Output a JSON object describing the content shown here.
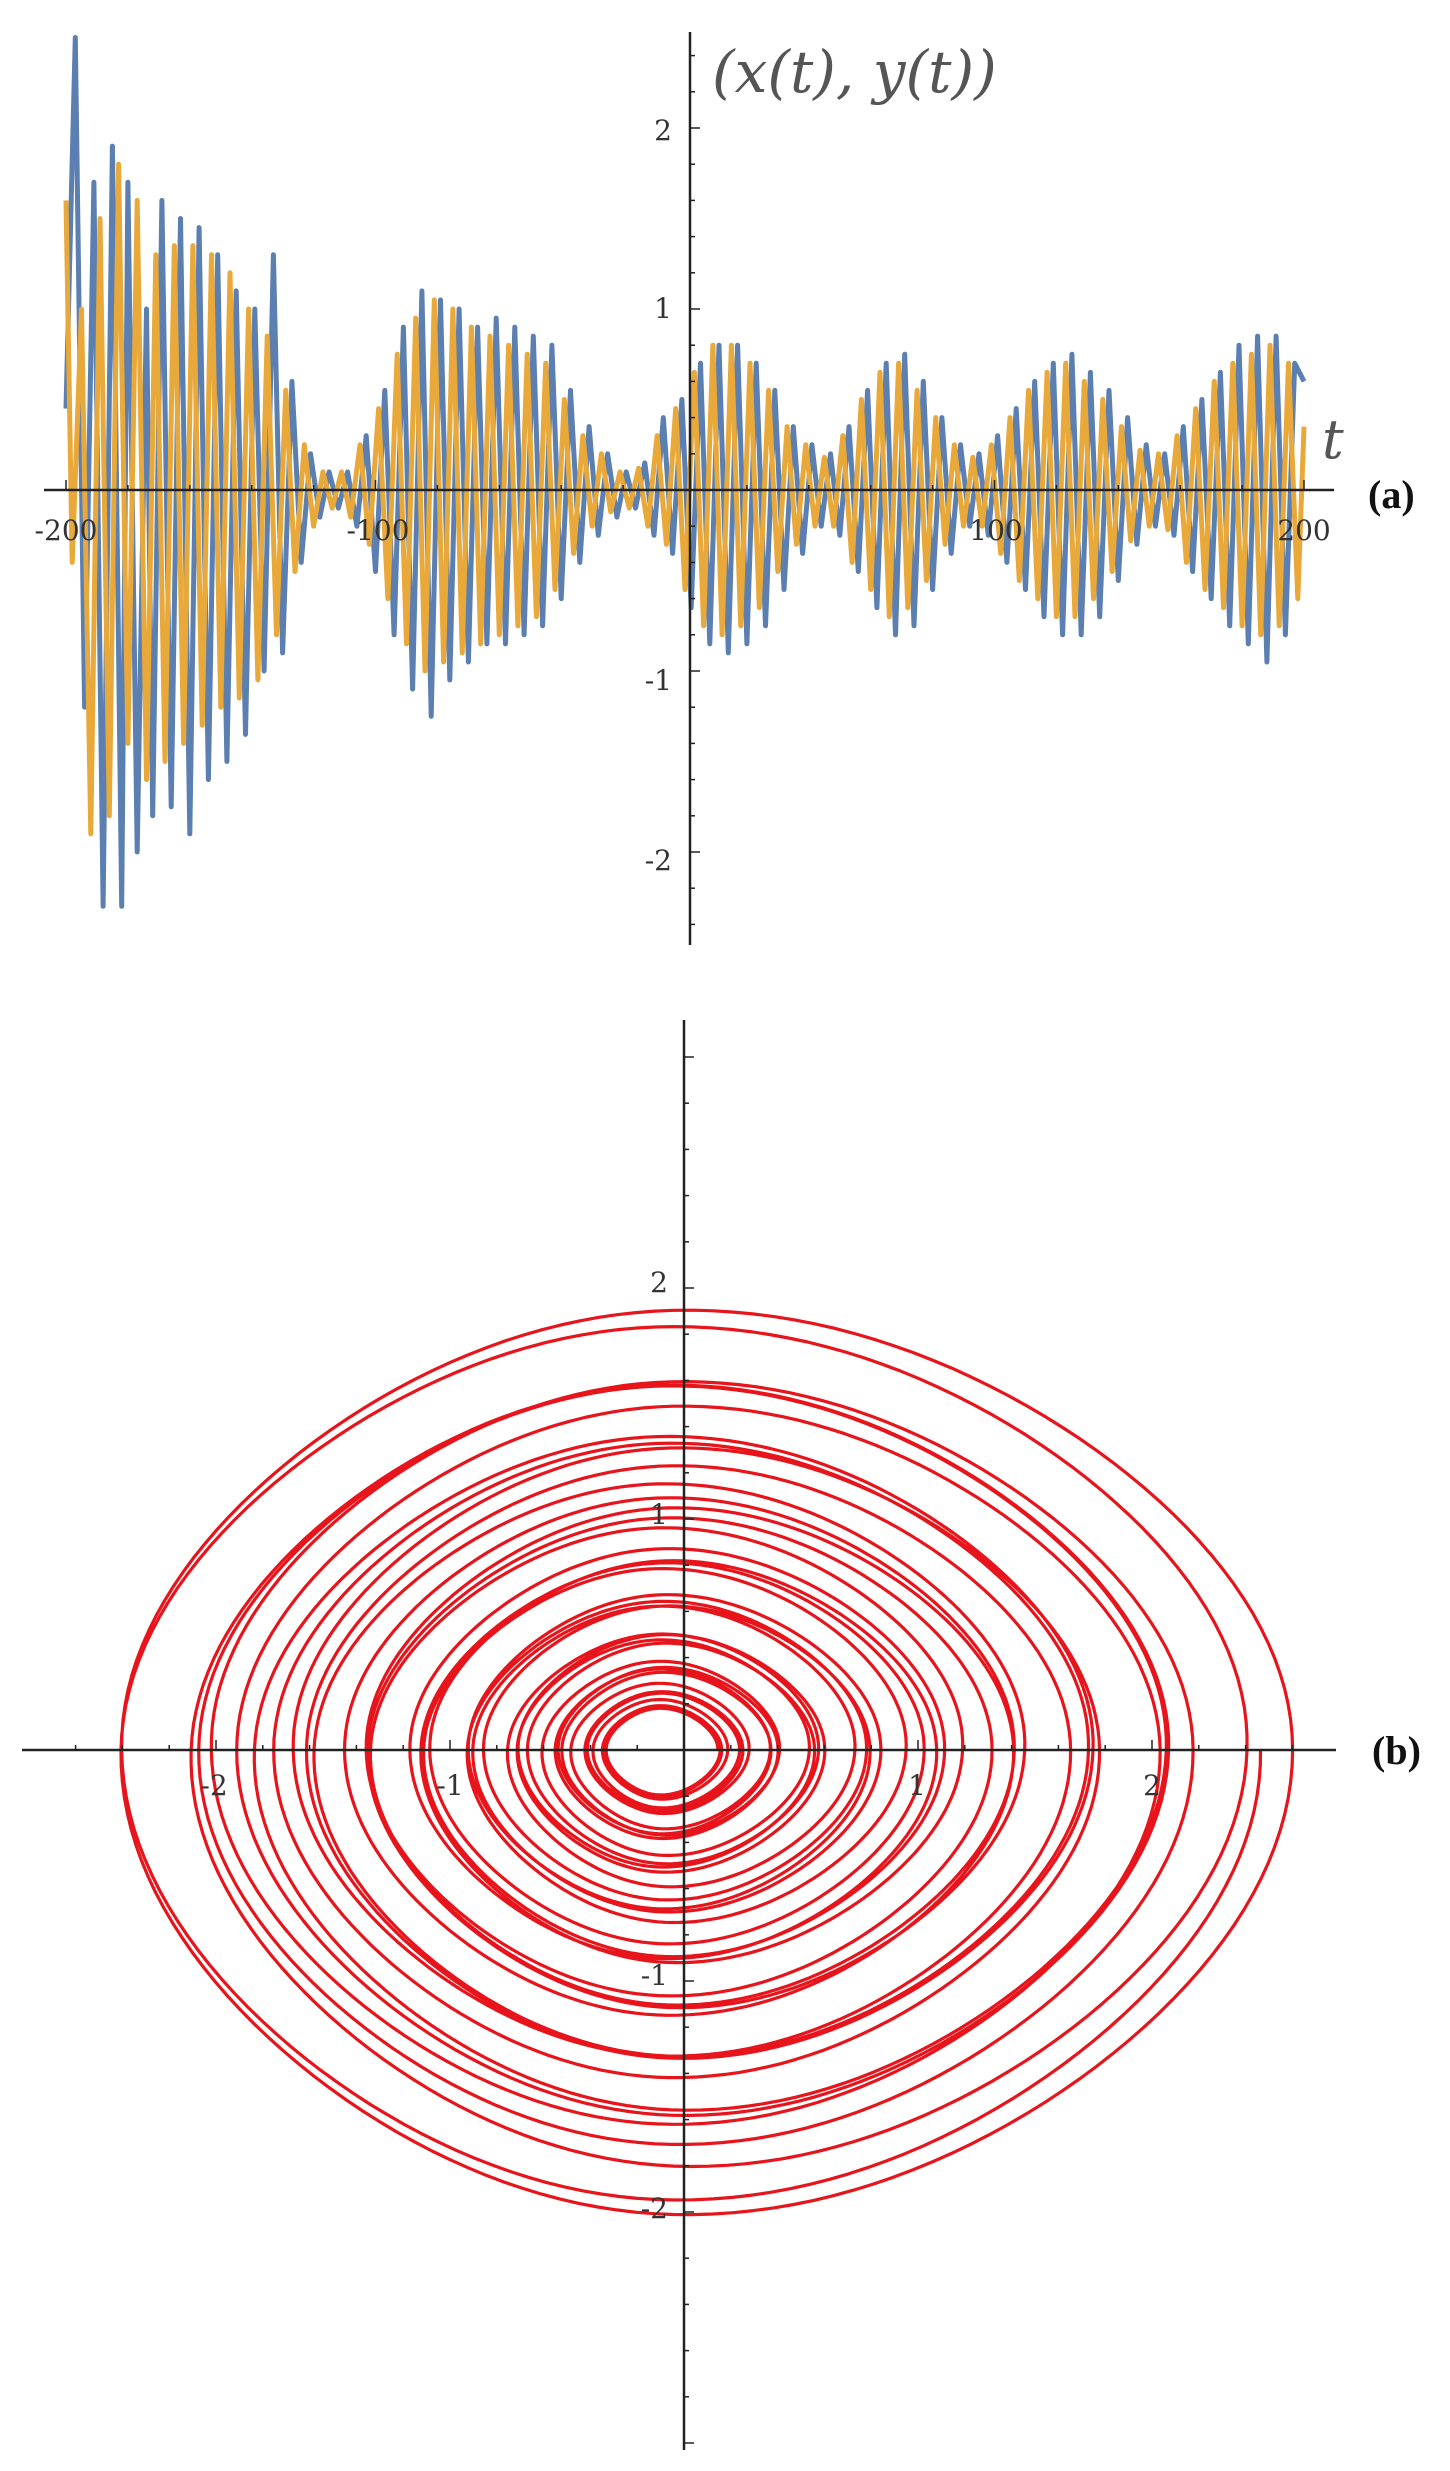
{
  "chart_data": [
    {
      "id": "a",
      "type": "line",
      "panel_label": "(a)",
      "title": "(x(t), y(t))",
      "xlabel": "t",
      "ylabel": "",
      "xlim": [
        -200,
        200
      ],
      "ylim": [
        -2.5,
        2.5
      ],
      "x_ticks": [
        -200,
        -100,
        100,
        200
      ],
      "y_ticks": [
        -2,
        -1,
        1,
        2
      ],
      "grid": false,
      "series": [
        {
          "color": "#5b7fb0",
          "points": [
            [
              -200,
              0.45
            ],
            [
              -197,
              2.5
            ],
            [
              -194,
              -1.2
            ],
            [
              -191,
              1.7
            ],
            [
              -188,
              -2.3
            ],
            [
              -185,
              1.9
            ],
            [
              -182,
              -2.3
            ],
            [
              -180,
              1.7
            ],
            [
              -177,
              -2.0
            ],
            [
              -174,
              1.0
            ],
            [
              -172,
              -1.8
            ],
            [
              -169,
              1.6
            ],
            [
              -166,
              -1.75
            ],
            [
              -163,
              1.5
            ],
            [
              -160,
              -1.9
            ],
            [
              -157,
              1.45
            ],
            [
              -154,
              -1.6
            ],
            [
              -151,
              1.3
            ],
            [
              -148,
              -1.5
            ],
            [
              -145,
              1.1
            ],
            [
              -142,
              -1.35
            ],
            [
              -139,
              1.0
            ],
            [
              -136,
              -1.0
            ],
            [
              -133,
              1.3
            ],
            [
              -130,
              -0.9
            ],
            [
              -127,
              0.6
            ],
            [
              -124,
              -0.4
            ],
            [
              -121,
              0.2
            ],
            [
              -118,
              -0.15
            ],
            [
              -115,
              0.1
            ],
            [
              -112,
              -0.1
            ],
            [
              -109,
              0.1
            ],
            [
              -106,
              -0.2
            ],
            [
              -103,
              0.3
            ],
            [
              -100,
              -0.45
            ],
            [
              -97,
              0.55
            ],
            [
              -94,
              -0.8
            ],
            [
              -91,
              0.9
            ],
            [
              -88,
              -1.1
            ],
            [
              -85,
              1.1
            ],
            [
              -82,
              -1.25
            ],
            [
              -79,
              1.05
            ],
            [
              -76,
              -1.05
            ],
            [
              -73,
              1.0
            ],
            [
              -70,
              -0.95
            ],
            [
              -67,
              0.9
            ],
            [
              -64,
              -0.85
            ],
            [
              -61,
              0.95
            ],
            [
              -58,
              -0.85
            ],
            [
              -55,
              0.9
            ],
            [
              -52,
              -0.8
            ],
            [
              -49,
              0.85
            ],
            [
              -46,
              -0.75
            ],
            [
              -43,
              0.8
            ],
            [
              -40,
              -0.6
            ],
            [
              -37,
              0.55
            ],
            [
              -34,
              -0.4
            ],
            [
              -31,
              0.35
            ],
            [
              -28,
              -0.25
            ],
            [
              -25,
              0.2
            ],
            [
              -22,
              -0.15
            ],
            [
              -19,
              0.1
            ],
            [
              -16,
              -0.1
            ],
            [
              -13,
              0.15
            ],
            [
              -10,
              -0.25
            ],
            [
              -7,
              0.4
            ],
            [
              -4,
              -0.35
            ],
            [
              -1,
              0.5
            ],
            [
              2,
              -0.65
            ],
            [
              5,
              0.7
            ],
            [
              8,
              -0.85
            ],
            [
              11,
              0.8
            ],
            [
              14,
              -0.9
            ],
            [
              17,
              0.8
            ],
            [
              20,
              -0.85
            ],
            [
              23,
              0.7
            ],
            [
              26,
              -0.75
            ],
            [
              29,
              0.55
            ],
            [
              32,
              -0.55
            ],
            [
              35,
              0.35
            ],
            [
              38,
              -0.35
            ],
            [
              41,
              0.25
            ],
            [
              44,
              -0.2
            ],
            [
              47,
              0.2
            ],
            [
              50,
              -0.25
            ],
            [
              53,
              0.35
            ],
            [
              56,
              -0.45
            ],
            [
              59,
              0.55
            ],
            [
              62,
              -0.65
            ],
            [
              65,
              0.7
            ],
            [
              68,
              -0.8
            ],
            [
              71,
              0.75
            ],
            [
              74,
              -0.75
            ],
            [
              77,
              0.6
            ],
            [
              80,
              -0.55
            ],
            [
              83,
              0.4
            ],
            [
              86,
              -0.35
            ],
            [
              89,
              0.25
            ],
            [
              92,
              -0.2
            ],
            [
              95,
              0.2
            ],
            [
              98,
              -0.25
            ],
            [
              101,
              0.3
            ],
            [
              104,
              -0.4
            ],
            [
              107,
              0.45
            ],
            [
              110,
              -0.55
            ],
            [
              113,
              0.6
            ],
            [
              116,
              -0.7
            ],
            [
              119,
              0.7
            ],
            [
              122,
              -0.8
            ],
            [
              125,
              0.75
            ],
            [
              128,
              -0.8
            ],
            [
              131,
              0.65
            ],
            [
              134,
              -0.7
            ],
            [
              137,
              0.55
            ],
            [
              140,
              -0.5
            ],
            [
              143,
              0.4
            ],
            [
              146,
              -0.3
            ],
            [
              149,
              0.25
            ],
            [
              152,
              -0.2
            ],
            [
              155,
              0.2
            ],
            [
              158,
              -0.25
            ],
            [
              161,
              0.35
            ],
            [
              164,
              -0.45
            ],
            [
              167,
              0.5
            ],
            [
              170,
              -0.6
            ],
            [
              173,
              0.65
            ],
            [
              176,
              -0.75
            ],
            [
              179,
              0.8
            ],
            [
              182,
              -0.85
            ],
            [
              185,
              0.85
            ],
            [
              188,
              -0.95
            ],
            [
              191,
              0.85
            ],
            [
              194,
              -0.8
            ],
            [
              197,
              0.7
            ],
            [
              200,
              0.6
            ]
          ]
        },
        {
          "color": "#e8a93a",
          "points": [
            [
              -200,
              1.6
            ],
            [
              -198,
              -0.4
            ],
            [
              -195,
              1.0
            ],
            [
              -192,
              -1.9
            ],
            [
              -189,
              1.5
            ],
            [
              -186,
              -1.8
            ],
            [
              -183,
              1.8
            ],
            [
              -180,
              -1.4
            ],
            [
              -177,
              1.6
            ],
            [
              -174,
              -1.6
            ],
            [
              -171,
              1.3
            ],
            [
              -168,
              -1.5
            ],
            [
              -165,
              1.35
            ],
            [
              -162,
              -1.4
            ],
            [
              -159,
              1.35
            ],
            [
              -156,
              -1.3
            ],
            [
              -153,
              1.3
            ],
            [
              -150,
              -1.2
            ],
            [
              -147,
              1.2
            ],
            [
              -144,
              -1.15
            ],
            [
              -141,
              1.0
            ],
            [
              -138,
              -1.05
            ],
            [
              -135,
              0.85
            ],
            [
              -132,
              -0.8
            ],
            [
              -129,
              0.55
            ],
            [
              -126,
              -0.45
            ],
            [
              -123,
              0.25
            ],
            [
              -120,
              -0.2
            ],
            [
              -117,
              0.1
            ],
            [
              -114,
              -0.1
            ],
            [
              -111,
              0.1
            ],
            [
              -108,
              -0.15
            ],
            [
              -105,
              0.25
            ],
            [
              -102,
              -0.3
            ],
            [
              -99,
              0.45
            ],
            [
              -96,
              -0.6
            ],
            [
              -93,
              0.75
            ],
            [
              -90,
              -0.85
            ],
            [
              -87,
              0.95
            ],
            [
              -84,
              -1.0
            ],
            [
              -81,
              1.05
            ],
            [
              -78,
              -0.95
            ],
            [
              -75,
              1.0
            ],
            [
              -72,
              -0.9
            ],
            [
              -69,
              0.9
            ],
            [
              -66,
              -0.85
            ],
            [
              -63,
              0.85
            ],
            [
              -60,
              -0.8
            ],
            [
              -57,
              0.8
            ],
            [
              -54,
              -0.75
            ],
            [
              -51,
              0.75
            ],
            [
              -48,
              -0.7
            ],
            [
              -45,
              0.7
            ],
            [
              -42,
              -0.55
            ],
            [
              -39,
              0.5
            ],
            [
              -36,
              -0.35
            ],
            [
              -33,
              0.3
            ],
            [
              -30,
              -0.2
            ],
            [
              -27,
              0.2
            ],
            [
              -24,
              -0.12
            ],
            [
              -21,
              0.1
            ],
            [
              -18,
              -0.1
            ],
            [
              -15,
              0.12
            ],
            [
              -12,
              -0.2
            ],
            [
              -9,
              0.3
            ],
            [
              -6,
              -0.3
            ],
            [
              -3,
              0.45
            ],
            [
              0,
              -0.55
            ],
            [
              3,
              0.65
            ],
            [
              6,
              -0.75
            ],
            [
              9,
              0.8
            ],
            [
              12,
              -0.8
            ],
            [
              15,
              0.8
            ],
            [
              18,
              -0.75
            ],
            [
              21,
              0.7
            ],
            [
              24,
              -0.65
            ],
            [
              27,
              0.55
            ],
            [
              30,
              -0.45
            ],
            [
              33,
              0.35
            ],
            [
              36,
              -0.3
            ],
            [
              39,
              0.25
            ],
            [
              42,
              -0.2
            ],
            [
              45,
              0.18
            ],
            [
              48,
              -0.2
            ],
            [
              51,
              0.3
            ],
            [
              54,
              -0.4
            ],
            [
              57,
              0.5
            ],
            [
              60,
              -0.55
            ],
            [
              63,
              0.65
            ],
            [
              66,
              -0.7
            ],
            [
              69,
              0.7
            ],
            [
              72,
              -0.65
            ],
            [
              75,
              0.55
            ],
            [
              78,
              -0.5
            ],
            [
              81,
              0.4
            ],
            [
              84,
              -0.3
            ],
            [
              87,
              0.25
            ],
            [
              90,
              -0.2
            ],
            [
              93,
              0.18
            ],
            [
              96,
              -0.2
            ],
            [
              99,
              0.25
            ],
            [
              102,
              -0.35
            ],
            [
              105,
              0.4
            ],
            [
              108,
              -0.5
            ],
            [
              111,
              0.55
            ],
            [
              114,
              -0.6
            ],
            [
              117,
              0.65
            ],
            [
              120,
              -0.7
            ],
            [
              123,
              0.7
            ],
            [
              126,
              -0.7
            ],
            [
              129,
              0.6
            ],
            [
              132,
              -0.6
            ],
            [
              135,
              0.5
            ],
            [
              138,
              -0.45
            ],
            [
              141,
              0.35
            ],
            [
              144,
              -0.28
            ],
            [
              147,
              0.22
            ],
            [
              150,
              -0.2
            ],
            [
              153,
              0.2
            ],
            [
              156,
              -0.22
            ],
            [
              159,
              0.3
            ],
            [
              162,
              -0.4
            ],
            [
              165,
              0.45
            ],
            [
              168,
              -0.55
            ],
            [
              171,
              0.6
            ],
            [
              174,
              -0.65
            ],
            [
              177,
              0.7
            ],
            [
              180,
              -0.75
            ],
            [
              183,
              0.75
            ],
            [
              186,
              -0.8
            ],
            [
              189,
              0.8
            ],
            [
              192,
              -0.75
            ],
            [
              195,
              0.7
            ],
            [
              198,
              -0.6
            ],
            [
              200,
              0.35
            ]
          ]
        }
      ]
    },
    {
      "id": "b",
      "type": "line",
      "panel_label": "(b)",
      "title": "",
      "xlabel": "",
      "ylabel": "",
      "xlim": [
        -2.7,
        2.7
      ],
      "ylim": [
        -2.8,
        2.8
      ],
      "x_ticks": [
        -2,
        -1,
        1,
        2
      ],
      "y_ticks": [
        -2,
        -1,
        1,
        2
      ],
      "grid": false,
      "curve": {
        "color": "#e8141b",
        "shape": "phase-portrait spiral (x(t), y(t))",
        "max_x": 2.45,
        "min_x": -2.3,
        "max_y": 1.8,
        "min_y": -1.9,
        "core_loop_radius": 0.1
      }
    }
  ]
}
